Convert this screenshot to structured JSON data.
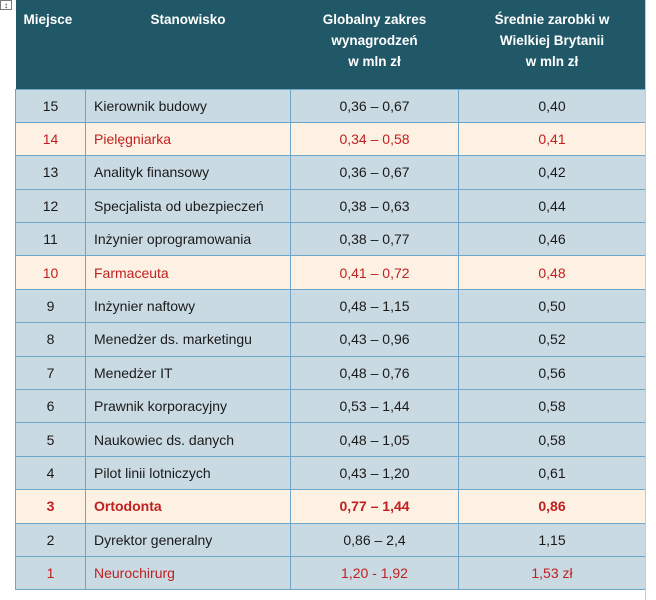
{
  "header": {
    "rank": "Miejsce",
    "position": "Stanowisko",
    "global_range": [
      "Globalny zakres",
      "wynagrodzeń",
      "w mln zł"
    ],
    "uk_salary": [
      "Średnie zarobki w",
      "Wielkiej Brytanii",
      "w mln zł"
    ]
  },
  "rows": [
    {
      "rank": "15",
      "title": "Kierownik budowy",
      "range": "0,36 – 0,67",
      "uk": "0,40",
      "style": "blue"
    },
    {
      "rank": "14",
      "title": "Pielęgniarka",
      "range": "0,34 – 0,58",
      "uk": "0,41",
      "style": "cream red"
    },
    {
      "rank": "13",
      "title": "Analityk finansowy",
      "range": "0,36 – 0,67",
      "uk": "0,42",
      "style": "blue"
    },
    {
      "rank": "12",
      "title": "Specjalista od ubezpieczeń",
      "range": "0,38 – 0,63",
      "uk": "0,44",
      "style": "blue"
    },
    {
      "rank": "11",
      "title": "Inżynier oprogramowania",
      "range": "0,38 – 0,77",
      "uk": "0,46",
      "style": "blue"
    },
    {
      "rank": "10",
      "title": "Farmaceuta",
      "range": "0,41 – 0,72",
      "uk": "0,48",
      "style": "cream red"
    },
    {
      "rank": "9",
      "title": "Inżynier naftowy",
      "range": "0,48 – 1,15",
      "uk": "0,50",
      "style": "blue"
    },
    {
      "rank": "8",
      "title": "Menedżer ds. marketingu",
      "range": "0,43 – 0,96",
      "uk": "0,52",
      "style": "blue"
    },
    {
      "rank": "7",
      "title": "Menedżer IT",
      "range": "0,48 – 0,76",
      "uk": "0,56",
      "style": "blue"
    },
    {
      "rank": "6",
      "title": "Prawnik korporacyjny",
      "range": "0,53 – 1,44",
      "uk": "0,58",
      "style": "blue"
    },
    {
      "rank": "5",
      "title": "Naukowiec ds. danych",
      "range": "0,48 – 1,05",
      "uk": "0,58",
      "style": "blue"
    },
    {
      "rank": "4",
      "title": "Pilot linii lotniczych",
      "range": "0,43 – 1,20",
      "uk": "0,61",
      "style": "blue"
    },
    {
      "rank": "3",
      "title": "Ortodonta",
      "range": "0,77 – 1,44",
      "uk": "0,86",
      "style": "cream red bold"
    },
    {
      "rank": "2",
      "title": "Dyrektor generalny",
      "range": "0,86 – 2,4",
      "uk": "1,15",
      "style": "blue"
    },
    {
      "rank": "1",
      "title": "Neurochirurg",
      "range": "1,20 - 1,92",
      "uk": "1,53 zł",
      "style": "blue red"
    }
  ],
  "colors": {
    "header_bg": "#215868",
    "row_blue": "#c9dae3",
    "row_cream": "#fdf1e4",
    "highlight_red": "#c0201f",
    "border": "#6ea6c9"
  }
}
